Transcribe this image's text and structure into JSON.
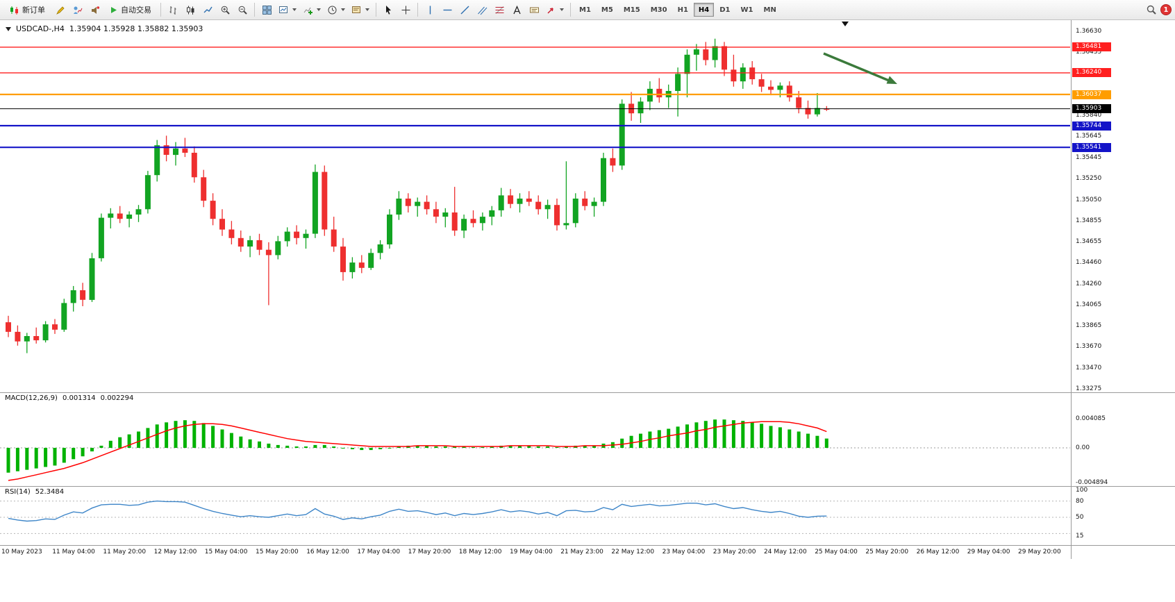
{
  "toolbar": {
    "new_order": "新订单",
    "auto_trading": "自动交易",
    "timeframes": [
      "M1",
      "M5",
      "M15",
      "M30",
      "H1",
      "H4",
      "D1",
      "W1",
      "MN"
    ],
    "active_timeframe": "H4",
    "notification_count": "1"
  },
  "chart_header": {
    "symbol": "USDCAD-,H4",
    "ohlc": "1.35904 1.35928 1.35882 1.35903"
  },
  "price_axis": {
    "labels": [
      "1.36630",
      "1.36435",
      "1.35840",
      "1.35645",
      "1.35445",
      "1.35250",
      "1.35050",
      "1.34855",
      "1.34655",
      "1.34460",
      "1.34260",
      "1.34065",
      "1.33865",
      "1.33670",
      "1.33470",
      "1.33275"
    ]
  },
  "levels": [
    {
      "label": "1.36481",
      "value": 1.36481,
      "hex": "#ff1f1f",
      "width": 1.4
    },
    {
      "label": "1.36240",
      "value": 1.3624,
      "hex": "#ff1f1f",
      "width": 1.4
    },
    {
      "label": "1.36037",
      "value": 1.36037,
      "hex": "#ff9d00",
      "width": 2.2
    },
    {
      "label": "1.35903",
      "value": 1.35903,
      "hex": "#000000",
      "width": 1
    },
    {
      "label": "1.35744",
      "value": 1.35744,
      "hex": "#1414c8",
      "width": 2.2
    },
    {
      "label": "1.35541",
      "value": 1.35541,
      "hex": "#1414c8",
      "width": 2.2
    }
  ],
  "macd_panel": {
    "label": "MACD(12,26,9)",
    "value_main": "0.001314",
    "value_signal": "0.002294",
    "axis_labels": [
      "0.004085",
      "0.00",
      "-0.004894"
    ]
  },
  "rsi_panel": {
    "label": "RSI(14)",
    "value": "52.3484",
    "axis_labels": [
      "100",
      "80",
      "50",
      "15"
    ]
  },
  "time_axis": {
    "labels": [
      "10 May 2023",
      "11 May 04:00",
      "11 May 20:00",
      "12 May 12:00",
      "15 May 04:00",
      "15 May 20:00",
      "16 May 12:00",
      "17 May 04:00",
      "17 May 20:00",
      "18 May 12:00",
      "19 May 04:00",
      "21 May 23:00",
      "22 May 12:00",
      "23 May 04:00",
      "23 May 20:00",
      "24 May 12:00",
      "25 May 04:00",
      "25 May 20:00",
      "26 May 12:00",
      "29 May 04:00",
      "29 May 20:00"
    ]
  },
  "colors": {
    "up": "#12a422",
    "down": "#ee2f2f",
    "macd_hist": "#00b200",
    "macd_signal": "#ff0000",
    "rsi_line": "#3d85c8",
    "arrow": "#3b7a3b",
    "axis_text": "#111111"
  },
  "chart_data": [
    {
      "type": "candlestick",
      "title": "USDCAD-,H4",
      "ylim": [
        1.33275,
        1.3663
      ],
      "levels": [
        1.36481,
        1.3624,
        1.36037,
        1.35903,
        1.35744,
        1.35541
      ],
      "x_labels": [
        "10 May 2023",
        "11 May 04:00",
        "11 May 20:00",
        "12 May 12:00",
        "15 May 04:00",
        "15 May 20:00",
        "16 May 12:00",
        "17 May 04:00",
        "17 May 20:00",
        "18 May 12:00",
        "19 May 04:00",
        "21 May 23:00",
        "22 May 12:00",
        "23 May 04:00",
        "23 May 20:00",
        "24 May 12:00",
        "25 May 04:00",
        "25 May 20:00",
        "26 May 12:00",
        "29 May 04:00",
        "29 May 20:00"
      ],
      "ohlc": [
        [
          1.339,
          1.3396,
          1.3376,
          1.3381
        ],
        [
          1.3381,
          1.3387,
          1.3368,
          1.3372
        ],
        [
          1.3372,
          1.338,
          1.3361,
          1.3377
        ],
        [
          1.3377,
          1.3385,
          1.337,
          1.3373
        ],
        [
          1.3373,
          1.3391,
          1.3371,
          1.3388
        ],
        [
          1.3388,
          1.3393,
          1.3379,
          1.3383
        ],
        [
          1.3383,
          1.3412,
          1.3381,
          1.3408
        ],
        [
          1.3408,
          1.3424,
          1.34,
          1.342
        ],
        [
          1.342,
          1.3427,
          1.3405,
          1.3411
        ],
        [
          1.3411,
          1.3455,
          1.3409,
          1.345
        ],
        [
          1.345,
          1.3492,
          1.3447,
          1.3488
        ],
        [
          1.3488,
          1.3497,
          1.3478,
          1.3492
        ],
        [
          1.3492,
          1.3499,
          1.3483,
          1.3487
        ],
        [
          1.3487,
          1.3494,
          1.3479,
          1.3491
        ],
        [
          1.3491,
          1.35,
          1.3484,
          1.3496
        ],
        [
          1.3496,
          1.3532,
          1.3492,
          1.3528
        ],
        [
          1.3528,
          1.3561,
          1.3522,
          1.3556
        ],
        [
          1.3556,
          1.3565,
          1.3541,
          1.3547
        ],
        [
          1.3547,
          1.3559,
          1.3537,
          1.3553
        ],
        [
          1.3553,
          1.3563,
          1.3545,
          1.3549
        ],
        [
          1.3549,
          1.3555,
          1.3521,
          1.3526
        ],
        [
          1.3526,
          1.3533,
          1.3498,
          1.3504
        ],
        [
          1.3504,
          1.3511,
          1.3481,
          1.3487
        ],
        [
          1.3487,
          1.3496,
          1.3471,
          1.3477
        ],
        [
          1.3477,
          1.3485,
          1.3463,
          1.3469
        ],
        [
          1.3469,
          1.3476,
          1.3456,
          1.3461
        ],
        [
          1.3461,
          1.3471,
          1.3451,
          1.3467
        ],
        [
          1.3467,
          1.3473,
          1.3453,
          1.3458
        ],
        [
          1.3458,
          1.3465,
          1.3406,
          1.3453
        ],
        [
          1.3453,
          1.3471,
          1.3449,
          1.3466
        ],
        [
          1.3466,
          1.3479,
          1.3461,
          1.3475
        ],
        [
          1.3475,
          1.3481,
          1.3463,
          1.3469
        ],
        [
          1.3469,
          1.3477,
          1.3459,
          1.3473
        ],
        [
          1.3473,
          1.3538,
          1.3469,
          1.3531
        ],
        [
          1.3531,
          1.3537,
          1.3471,
          1.3477
        ],
        [
          1.3477,
          1.3489,
          1.3456,
          1.3461
        ],
        [
          1.3461,
          1.3469,
          1.3429,
          1.3437
        ],
        [
          1.3437,
          1.3451,
          1.3431,
          1.3446
        ],
        [
          1.3446,
          1.3453,
          1.3436,
          1.3441
        ],
        [
          1.3441,
          1.3459,
          1.3439,
          1.3455
        ],
        [
          1.3455,
          1.3467,
          1.3449,
          1.3463
        ],
        [
          1.3463,
          1.3496,
          1.3459,
          1.3491
        ],
        [
          1.3491,
          1.3513,
          1.3486,
          1.3506
        ],
        [
          1.3506,
          1.3511,
          1.3493,
          1.3499
        ],
        [
          1.3499,
          1.3507,
          1.3489,
          1.3503
        ],
        [
          1.3503,
          1.3509,
          1.3491,
          1.3496
        ],
        [
          1.3496,
          1.3503,
          1.3483,
          1.3489
        ],
        [
          1.3489,
          1.3497,
          1.3479,
          1.3493
        ],
        [
          1.3493,
          1.3517,
          1.3471,
          1.3476
        ],
        [
          1.3476,
          1.3491,
          1.3469,
          1.3487
        ],
        [
          1.3487,
          1.3495,
          1.3479,
          1.3483
        ],
        [
          1.3483,
          1.3493,
          1.3476,
          1.3489
        ],
        [
          1.3489,
          1.3499,
          1.3481,
          1.3495
        ],
        [
          1.3495,
          1.3516,
          1.3489,
          1.3509
        ],
        [
          1.3509,
          1.3515,
          1.3497,
          1.3501
        ],
        [
          1.3501,
          1.3511,
          1.3493,
          1.3506
        ],
        [
          1.3506,
          1.3513,
          1.3499,
          1.3503
        ],
        [
          1.3503,
          1.3509,
          1.3491,
          1.3496
        ],
        [
          1.3496,
          1.3505,
          1.3487,
          1.35
        ],
        [
          1.35,
          1.3506,
          1.3476,
          1.3481
        ],
        [
          1.3481,
          1.3541,
          1.3477,
          1.3483
        ],
        [
          1.3483,
          1.3511,
          1.3479,
          1.3506
        ],
        [
          1.3506,
          1.3513,
          1.3495,
          1.3499
        ],
        [
          1.3499,
          1.3507,
          1.3489,
          1.3503
        ],
        [
          1.3503,
          1.3549,
          1.3499,
          1.3544
        ],
        [
          1.3544,
          1.3553,
          1.3531,
          1.3537
        ],
        [
          1.3537,
          1.3599,
          1.3533,
          1.3595
        ],
        [
          1.3595,
          1.3606,
          1.3579,
          1.3586
        ],
        [
          1.3586,
          1.3601,
          1.3577,
          1.3597
        ],
        [
          1.3597,
          1.3616,
          1.3589,
          1.3609
        ],
        [
          1.3609,
          1.3619,
          1.3596,
          1.3601
        ],
        [
          1.3601,
          1.3613,
          1.3591,
          1.3607
        ],
        [
          1.3607,
          1.3629,
          1.3583,
          1.3623
        ],
        [
          1.3623,
          1.3646,
          1.3601,
          1.3641
        ],
        [
          1.3641,
          1.3651,
          1.3626,
          1.3646
        ],
        [
          1.3646,
          1.3653,
          1.3631,
          1.3636
        ],
        [
          1.3636,
          1.3656,
          1.3629,
          1.3649
        ],
        [
          1.3649,
          1.3653,
          1.3621,
          1.3627
        ],
        [
          1.3627,
          1.3641,
          1.3611,
          1.3616
        ],
        [
          1.3616,
          1.3633,
          1.3609,
          1.3629
        ],
        [
          1.3629,
          1.3635,
          1.3613,
          1.3618
        ],
        [
          1.3618,
          1.3623,
          1.3606,
          1.3611
        ],
        [
          1.3611,
          1.3617,
          1.3603,
          1.3608
        ],
        [
          1.3608,
          1.3615,
          1.3601,
          1.3612
        ],
        [
          1.3612,
          1.3616,
          1.3597,
          1.3601
        ],
        [
          1.3601,
          1.3607,
          1.3586,
          1.3591
        ],
        [
          1.3591,
          1.3598,
          1.3581,
          1.3585
        ],
        [
          1.3585,
          1.3605,
          1.3583,
          1.3591
        ],
        [
          1.35904,
          1.35928,
          1.35882,
          1.35903
        ]
      ]
    },
    {
      "type": "bar",
      "name": "MACD(12,26,9)",
      "last_main": 0.001314,
      "last_signal": 0.002294,
      "axis": [
        0.004085,
        0,
        -0.004894
      ],
      "values": [
        -0.0035,
        -0.0033,
        -0.0031,
        -0.0029,
        -0.0027,
        -0.0025,
        -0.0021,
        -0.0016,
        -0.0012,
        -0.0005,
        0.0003,
        0.001,
        0.0015,
        0.0019,
        0.0023,
        0.0028,
        0.0033,
        0.0036,
        0.0038,
        0.0039,
        0.0038,
        0.0035,
        0.0031,
        0.0026,
        0.0021,
        0.0016,
        0.0012,
        0.0009,
        0.0006,
        0.0004,
        0.0003,
        0.0002,
        0.0002,
        0.0004,
        0.0004,
        0.0002,
        -0.0001,
        -0.0002,
        -0.0003,
        -0.0003,
        -0.0002,
        0.0,
        0.0002,
        0.0003,
        0.0003,
        0.0003,
        0.0002,
        0.0002,
        0.0002,
        0.0002,
        0.0001,
        0.0001,
        0.0002,
        0.0003,
        0.0003,
        0.0003,
        0.0003,
        0.0002,
        0.0002,
        0.0001,
        0.0002,
        0.0003,
        0.0003,
        0.0003,
        0.0006,
        0.0008,
        0.0013,
        0.0017,
        0.002,
        0.0023,
        0.0025,
        0.0027,
        0.003,
        0.0033,
        0.0036,
        0.0038,
        0.004,
        0.004,
        0.0039,
        0.0038,
        0.0036,
        0.0034,
        0.0031,
        0.0029,
        0.0026,
        0.0023,
        0.002,
        0.0017,
        0.001314
      ],
      "signal": [
        -0.0046,
        -0.0044,
        -0.0041,
        -0.0038,
        -0.0035,
        -0.0032,
        -0.0029,
        -0.0025,
        -0.0021,
        -0.0016,
        -0.0011,
        -0.0006,
        -0.0001,
        0.0004,
        0.0009,
        0.0014,
        0.0019,
        0.0024,
        0.0028,
        0.0031,
        0.0033,
        0.0034,
        0.0034,
        0.0033,
        0.0031,
        0.0028,
        0.0025,
        0.0022,
        0.0019,
        0.0016,
        0.0013,
        0.0011,
        0.0009,
        0.0008,
        0.0007,
        0.0006,
        0.0005,
        0.0004,
        0.0003,
        0.0002,
        0.0002,
        0.0002,
        0.0002,
        0.0002,
        0.0003,
        0.0003,
        0.0003,
        0.0003,
        0.0002,
        0.0002,
        0.0002,
        0.0002,
        0.0002,
        0.0002,
        0.0003,
        0.0003,
        0.0003,
        0.0003,
        0.0003,
        0.0002,
        0.0002,
        0.0002,
        0.0003,
        0.0003,
        0.0003,
        0.0004,
        0.0005,
        0.0007,
        0.0009,
        0.0012,
        0.0014,
        0.0017,
        0.0019,
        0.0021,
        0.0024,
        0.0026,
        0.0029,
        0.0031,
        0.0033,
        0.0035,
        0.0036,
        0.0037,
        0.0037,
        0.0037,
        0.0036,
        0.0034,
        0.0031,
        0.0028,
        0.002294
      ]
    },
    {
      "type": "line",
      "name": "RSI(14)",
      "last": 52.3484,
      "ylim": [
        0,
        100
      ],
      "levels": [
        80,
        50,
        20
      ],
      "values": [
        48,
        45,
        43,
        44,
        47,
        46,
        54,
        60,
        58,
        67,
        73,
        74,
        74,
        72,
        73,
        78,
        80,
        79,
        79,
        78,
        72,
        66,
        61,
        57,
        54,
        51,
        53,
        51,
        50,
        53,
        56,
        53,
        55,
        66,
        56,
        52,
        46,
        49,
        47,
        51,
        54,
        61,
        65,
        61,
        62,
        59,
        55,
        58,
        53,
        57,
        55,
        57,
        60,
        64,
        60,
        62,
        60,
        56,
        59,
        53,
        62,
        63,
        60,
        61,
        68,
        64,
        74,
        70,
        72,
        74,
        71,
        72,
        74,
        76,
        76,
        73,
        75,
        70,
        66,
        68,
        64,
        61,
        59,
        61,
        57,
        52,
        50,
        52,
        52.3484
      ]
    }
  ]
}
